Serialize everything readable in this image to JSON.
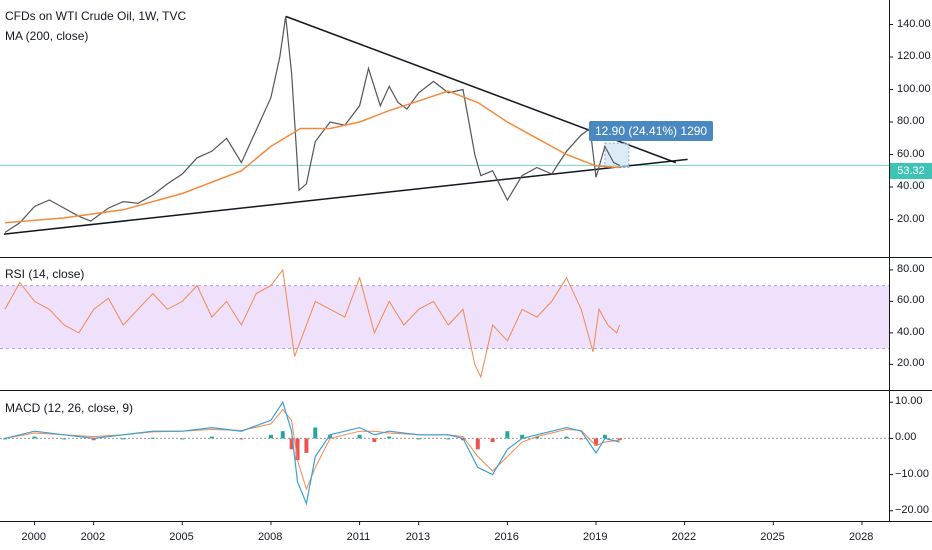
{
  "header": {
    "title": "CFDs on WTI Crude Oil, 1W, TVC",
    "ma_label": "MA (200, close)",
    "rsi_label": "RSI (14, close)",
    "macd_label": "MACD (12, 26, close, 9)"
  },
  "current_price": "53.32",
  "measure_label": "12.90 (24.41%) 1290",
  "colors": {
    "price_line": "#555555",
    "ma": "#f58a3d",
    "rsi": "#f0894f",
    "rsi_band": "#efe1fb",
    "macd": "#3aa0d8",
    "signal": "#f3884f",
    "hist_pos": "#26a69a",
    "hist_neg": "#ef5350",
    "badge": "#3ec4b4",
    "measure": "#4a88c2"
  },
  "x_axis_labels": [
    "2000",
    "2002",
    "2005",
    "2008",
    "2011",
    "2013",
    "2016",
    "2019",
    "2022",
    "2025",
    "2028"
  ],
  "chart_data": [
    {
      "type": "line",
      "name": "price",
      "y_ticks": [
        "20.00",
        "40.00",
        "60.00",
        "80.00",
        "100.00",
        "120.00",
        "140.00"
      ],
      "ylim": [
        0,
        152
      ],
      "x": [
        1999.0,
        1999.5,
        2000.0,
        2000.5,
        2001.0,
        2001.5,
        2001.9,
        2002.5,
        2003.0,
        2003.5,
        2004.0,
        2004.5,
        2005.0,
        2005.5,
        2006.0,
        2006.5,
        2007.0,
        2007.5,
        2008.0,
        2008.3,
        2008.5,
        2008.7,
        2008.95,
        2009.2,
        2009.5,
        2010.0,
        2010.5,
        2011.0,
        2011.3,
        2011.7,
        2012.0,
        2012.3,
        2012.6,
        2013.0,
        2013.5,
        2014.0,
        2014.5,
        2014.9,
        2015.1,
        2015.5,
        2016.0,
        2016.5,
        2017.0,
        2017.5,
        2018.0,
        2018.5,
        2018.8,
        2019.0,
        2019.3,
        2019.6,
        2019.8
      ],
      "values": [
        12,
        18,
        28,
        32,
        27,
        22,
        19,
        27,
        31,
        30,
        35,
        42,
        48,
        58,
        62,
        70,
        55,
        75,
        95,
        120,
        145,
        110,
        38,
        42,
        68,
        80,
        78,
        90,
        113,
        90,
        102,
        92,
        88,
        98,
        105,
        98,
        100,
        60,
        47,
        50,
        32,
        47,
        52,
        48,
        62,
        72,
        76,
        46,
        65,
        55,
        53.32
      ]
    },
    {
      "type": "line",
      "name": "MA (200, close)",
      "x": [
        1999.0,
        2001.0,
        2003.0,
        2005.0,
        2007.0,
        2008.0,
        2009.0,
        2010.0,
        2011.0,
        2012.0,
        2013.0,
        2014.0,
        2015.0,
        2016.0,
        2017.0,
        2018.0,
        2019.0,
        2019.8
      ],
      "values": [
        18,
        21,
        26,
        36,
        50,
        65,
        76,
        76,
        80,
        87,
        93,
        99,
        92,
        80,
        70,
        60,
        53,
        52
      ]
    },
    {
      "type": "line",
      "name": "RSI (14, close)",
      "y_ticks": [
        "20.00",
        "40.00",
        "60.00",
        "80.00"
      ],
      "ylim": [
        5,
        85
      ],
      "band": [
        30,
        70
      ],
      "x": [
        1999.0,
        1999.5,
        2000.0,
        2000.5,
        2001.0,
        2001.5,
        2002.0,
        2002.5,
        2003.0,
        2003.5,
        2004.0,
        2004.5,
        2005.0,
        2005.5,
        2006.0,
        2006.5,
        2007.0,
        2007.5,
        2008.0,
        2008.4,
        2008.8,
        2009.0,
        2009.5,
        2010.0,
        2010.5,
        2011.0,
        2011.5,
        2012.0,
        2012.5,
        2013.0,
        2013.5,
        2014.0,
        2014.5,
        2014.9,
        2015.1,
        2015.5,
        2016.0,
        2016.5,
        2017.0,
        2017.5,
        2018.0,
        2018.5,
        2018.9,
        2019.1,
        2019.4,
        2019.7,
        2019.8
      ],
      "values": [
        55,
        72,
        60,
        55,
        45,
        40,
        55,
        62,
        45,
        55,
        65,
        55,
        60,
        70,
        50,
        60,
        45,
        65,
        70,
        80,
        25,
        35,
        60,
        55,
        50,
        75,
        40,
        60,
        45,
        55,
        60,
        45,
        55,
        20,
        12,
        45,
        35,
        55,
        50,
        60,
        75,
        55,
        28,
        55,
        45,
        40,
        45
      ]
    },
    {
      "type": "line",
      "name": "MACD (12, 26, close, 9)",
      "y_ticks": [
        "−20.00",
        "−10.00",
        "0.00",
        "10.00"
      ],
      "ylim": [
        -22,
        12
      ],
      "x": [
        1999.0,
        2000.0,
        2001.0,
        2002.0,
        2003.0,
        2004.0,
        2005.0,
        2006.0,
        2007.0,
        2008.0,
        2008.4,
        2008.7,
        2008.9,
        2009.2,
        2009.5,
        2010.0,
        2011.0,
        2011.5,
        2012.0,
        2013.0,
        2014.0,
        2014.5,
        2015.0,
        2015.5,
        2016.0,
        2016.5,
        2017.0,
        2018.0,
        2018.5,
        2019.0,
        2019.3,
        2019.8
      ],
      "macd": [
        0,
        2,
        1,
        0,
        1,
        2,
        2,
        3,
        2,
        5,
        10,
        2,
        -12,
        -18,
        -5,
        1,
        3,
        1,
        2,
        1,
        1,
        0,
        -8,
        -10,
        -3,
        0,
        1,
        3,
        2,
        -4,
        0,
        -1
      ],
      "signal": [
        0,
        1.5,
        1,
        0.5,
        1,
        1.8,
        2,
        2.5,
        2.2,
        4,
        8,
        5,
        -6,
        -14,
        -8,
        0,
        2,
        2,
        1.5,
        1,
        1,
        0.5,
        -5,
        -9,
        -5,
        -1,
        0.5,
        2.5,
        2.2,
        -2,
        -1,
        -0.5
      ]
    }
  ]
}
